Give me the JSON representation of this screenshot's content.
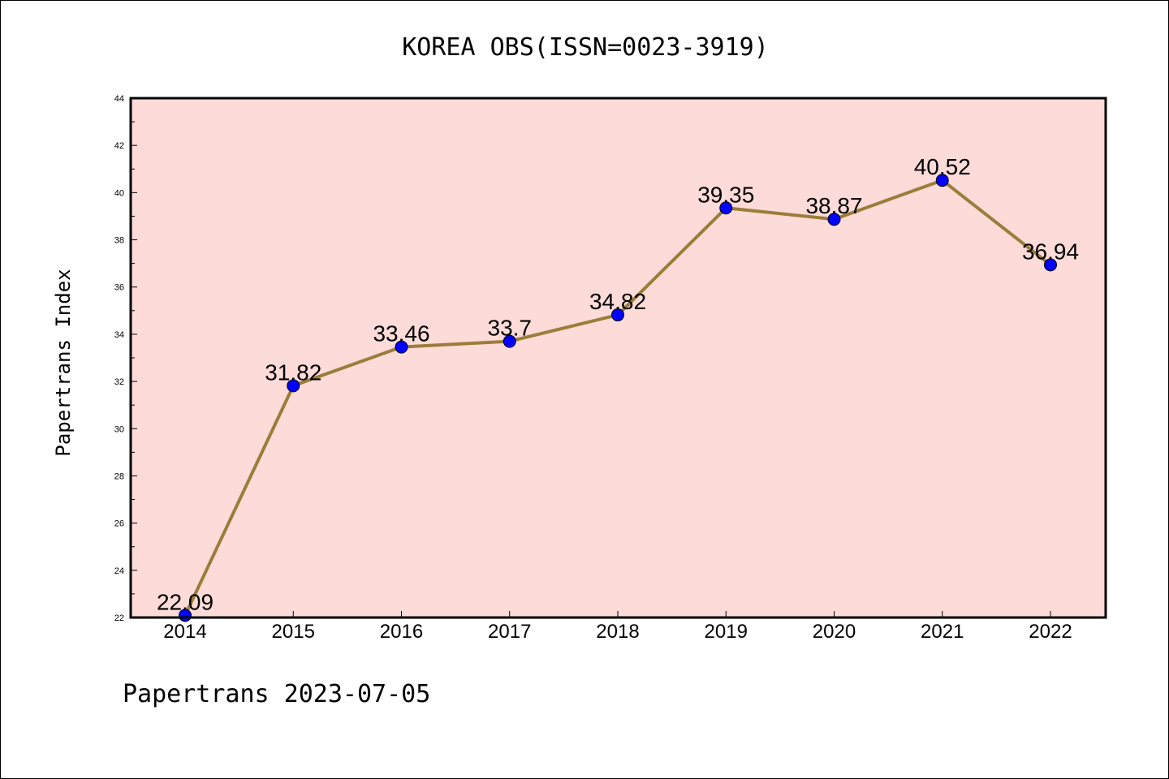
{
  "chart_data": {
    "type": "line",
    "title": "KOREA OBS(ISSN=0023-3919)",
    "xlabel": "",
    "ylabel": "Papertrans Index",
    "footer": "Papertrans 2023-07-05",
    "x": [
      "2014",
      "2015",
      "2016",
      "2017",
      "2018",
      "2019",
      "2020",
      "2021",
      "2022"
    ],
    "values": [
      22.09,
      31.82,
      33.46,
      33.7,
      34.82,
      39.35,
      38.87,
      40.52,
      36.94
    ],
    "data_labels": [
      "22.09",
      "31.82",
      "33.46",
      "33.7",
      "34.82",
      "39.35",
      "38.87",
      "40.52",
      "36.94"
    ],
    "ylim": [
      22,
      44
    ],
    "yticks": [
      "22",
      "24",
      "26",
      "28",
      "30",
      "32",
      "34",
      "36",
      "38",
      "40",
      "42",
      "44"
    ],
    "grid": false,
    "legend": "none",
    "colors": {
      "plot_background": "#fddbd8",
      "line": "#9b7d3b",
      "marker": "#0000ff"
    }
  }
}
